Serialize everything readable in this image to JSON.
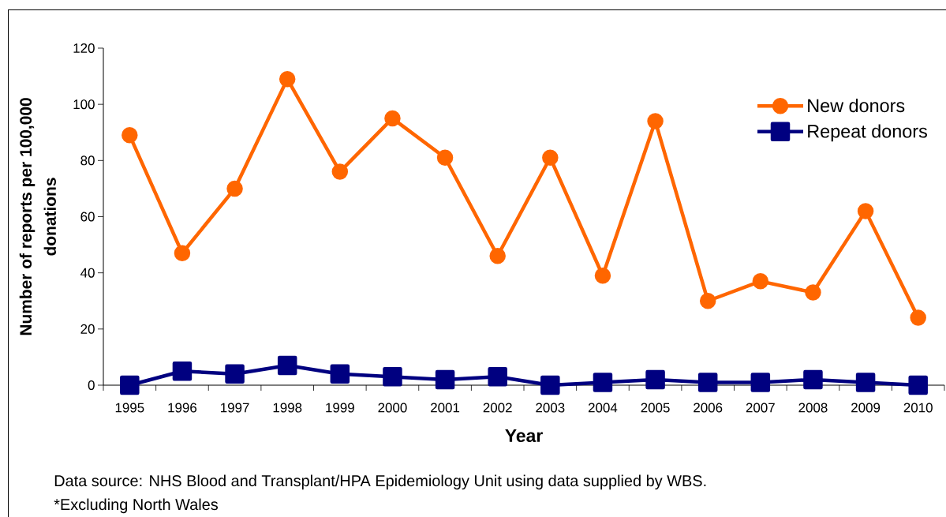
{
  "chart_data": {
    "type": "line",
    "categories": [
      "1995",
      "1996",
      "1997",
      "1998",
      "1999",
      "2000",
      "2001",
      "2002",
      "2003",
      "2004",
      "2005",
      "2006",
      "2007",
      "2008",
      "2009",
      "2010"
    ],
    "xlabel": "Year",
    "ylabel": "Number of reports per 100,000 donations",
    "ylim": [
      0,
      120
    ],
    "yticks": [
      0,
      20,
      40,
      60,
      80,
      100,
      120
    ],
    "legend": "top right",
    "line_style": "solid",
    "series": [
      {
        "name": "New donors",
        "color": "#ff6600",
        "marker": "circle",
        "values": [
          89,
          47,
          70,
          109,
          76,
          95,
          81,
          46,
          81,
          39,
          94,
          30,
          37,
          33,
          62,
          24
        ]
      },
      {
        "name": "Repeat donors",
        "color": "#000080",
        "marker": "square",
        "values": [
          0,
          5,
          4,
          7,
          4,
          3,
          2,
          3,
          0,
          1,
          2,
          1,
          1,
          2,
          1,
          0
        ]
      }
    ],
    "annotations": [
      "Data source: NHS Blood and Transplant/HPA Epidemiology Unit using data supplied by WBS.",
      "*Excluding North Wales"
    ]
  }
}
